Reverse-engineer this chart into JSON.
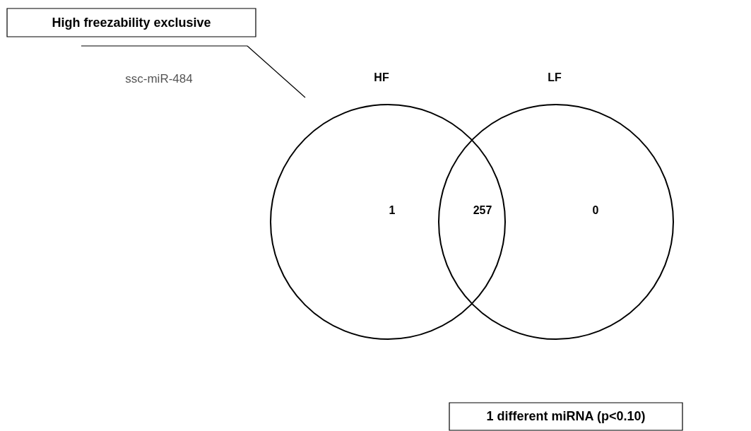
{
  "chart_data": {
    "type": "other",
    "categories": [
      null,
      null,
      null
    ],
    "values": [
      1,
      257,
      0
    ],
    "data_labels": true,
    "annotations": [
      "HF",
      "LF",
      "High freezability exclusive",
      "ssc-miR-484",
      "1 different miRNA (p<0.10)"
    ]
  }
}
